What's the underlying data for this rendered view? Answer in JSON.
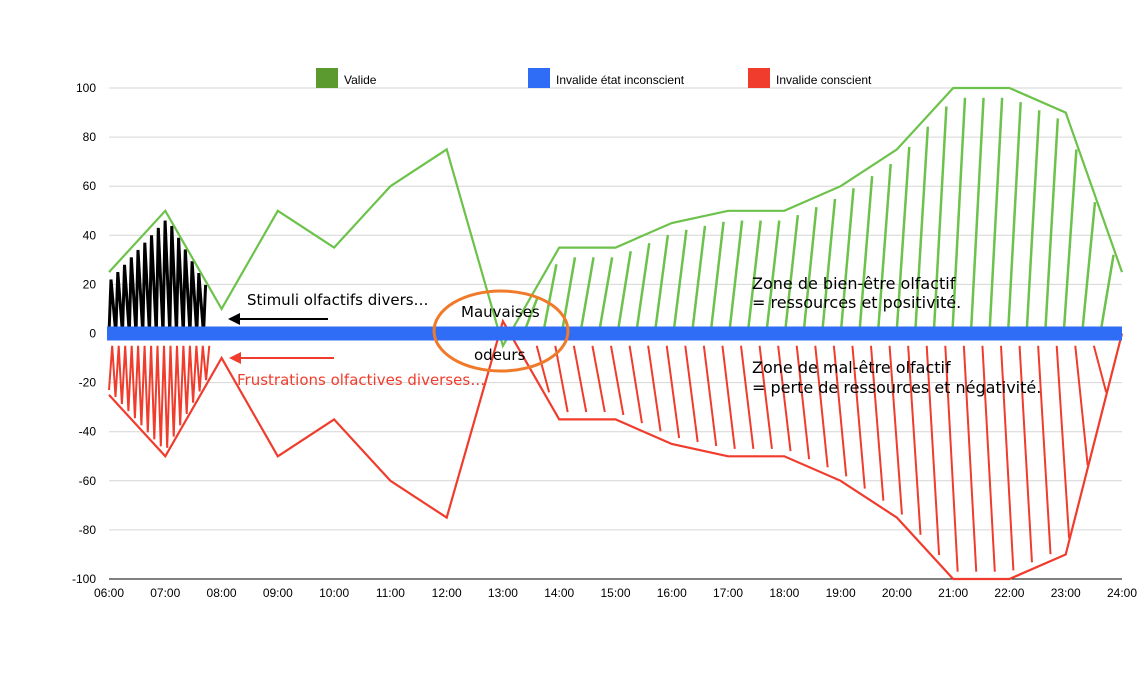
{
  "chart_data": {
    "type": "line",
    "x": [
      "06:00",
      "07:00",
      "08:00",
      "09:00",
      "10:00",
      "11:00",
      "12:00",
      "13:00",
      "14:00",
      "15:00",
      "16:00",
      "17:00",
      "18:00",
      "19:00",
      "20:00",
      "21:00",
      "22:00",
      "23:00",
      "24:00"
    ],
    "ylim": [
      -100,
      100
    ],
    "yticks": [
      "100",
      "80",
      "60",
      "40",
      "20",
      "0",
      "-20",
      "-40",
      "-60",
      "-80",
      "-100"
    ],
    "grid": true,
    "legend_position": "top",
    "series": [
      {
        "name": "Valide",
        "color": "#5a9a2e",
        "line_color": "#6cc24a",
        "values": [
          25,
          50,
          10,
          50,
          35,
          60,
          75,
          -5,
          35,
          35,
          45,
          50,
          50,
          60,
          75,
          100,
          100,
          90,
          25
        ]
      },
      {
        "name": "Invalide état inconscient",
        "color": "#2f6df6",
        "values": [
          0,
          0,
          0,
          0,
          0,
          0,
          0,
          0,
          0,
          0,
          0,
          0,
          0,
          0,
          0,
          0,
          0,
          0,
          0
        ]
      },
      {
        "name": "Invalide conscient",
        "color": "#f03c2c",
        "line_color": "#f03c2c",
        "values": [
          -25,
          -50,
          -10,
          -50,
          -35,
          -60,
          -75,
          5,
          -35,
          -35,
          -45,
          -50,
          -50,
          -60,
          -75,
          -100,
          -100,
          -90,
          0
        ]
      }
    ],
    "annotations": {
      "stimuli": "Stimuli olfactifs divers…",
      "frustrations": "Frustrations olfactives diverses…",
      "mauvaises": "Mauvaises",
      "odeurs": "odeurs",
      "zone_bien_1": "Zone de bien-être olfactif",
      "zone_bien_2": "= ressources et positivité.",
      "zone_mal_1": "Zone de mal-être olfactif",
      "zone_mal_2": "= perte de ressources et négativité."
    },
    "hatch_ranges": {
      "black_upper": {
        "from": 0,
        "to": 1.75
      },
      "red_lower_left": {
        "from": 0,
        "to": 1.75
      },
      "green_upper_right": {
        "from": 7.4,
        "to": 17.9
      },
      "red_lower_right": {
        "from": 7.6,
        "to": 17.9
      }
    }
  }
}
